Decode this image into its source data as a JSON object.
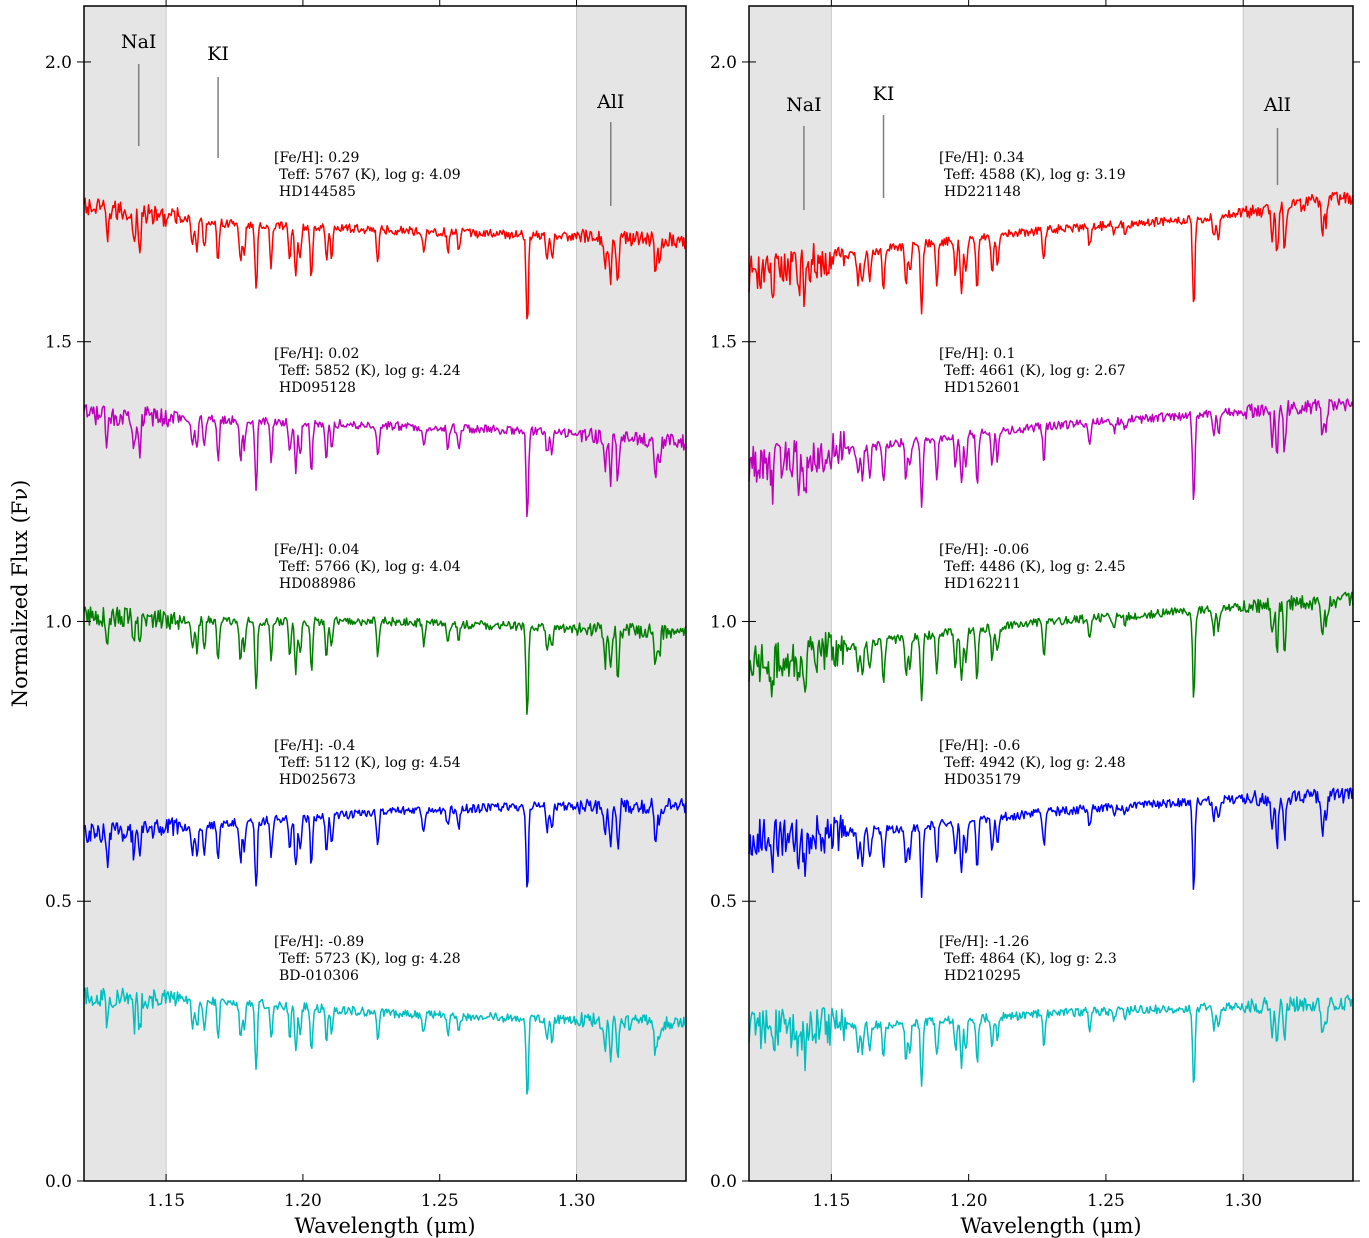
{
  "chart_data": [
    {
      "type": "line",
      "xlabel": "Wavelength (μm)",
      "ylabel": "Normalized Flux (Fν)",
      "xlim": [
        1.12,
        1.34
      ],
      "ylim": [
        0.0,
        2.1
      ],
      "x_ticks": [
        "1.15",
        "1.20",
        "1.25",
        "1.30"
      ],
      "y_ticks": [
        "0.0",
        "0.5",
        "1.0",
        "1.5",
        "2.0"
      ],
      "shaded_regions": [
        [
          1.12,
          1.15
        ],
        [
          1.3,
          1.34
        ]
      ],
      "line_markers": [
        {
          "label": "NaI",
          "x": 1.14,
          "y_top": 1.85,
          "y_bottom": 1.84
        },
        {
          "label": "KI",
          "x": 1.169,
          "y_top": 1.82,
          "y_bottom": 1.82
        },
        {
          "label": "AlI",
          "x": 1.3125,
          "y_top": 1.73,
          "y_bottom": 1.73
        }
      ],
      "series": [
        {
          "color": "#ff0000",
          "continuum": [
            1.74,
            1.71,
            1.7,
            1.69,
            1.68
          ],
          "feh": "[Fe/H]: 0.29",
          "params": "Teff: 5767 (K), log g: 4.09",
          "star": "HD144585"
        },
        {
          "color": "#bf00bf",
          "continuum": [
            1.37,
            1.36,
            1.35,
            1.34,
            1.32
          ],
          "feh": "[Fe/H]: 0.02",
          "params": "Teff: 5852 (K), log g: 4.24",
          "star": "HD095128"
        },
        {
          "color": "#007f00",
          "continuum": [
            1.01,
            1.0,
            1.0,
            0.99,
            0.98
          ],
          "feh": "[Fe/H]: 0.04",
          "params": "Teff: 5766 (K), log g: 4.04",
          "star": "HD088986"
        },
        {
          "color": "#0000ff",
          "continuum": [
            0.62,
            0.64,
            0.66,
            0.67,
            0.67
          ],
          "feh": "[Fe/H]: -0.4",
          "params": "Teff: 5112 (K), log g: 4.54",
          "star": "HD025673"
        },
        {
          "color": "#00bfbf",
          "continuum": [
            0.33,
            0.32,
            0.3,
            0.29,
            0.28
          ],
          "feh": "[Fe/H]: -0.89",
          "params": "Teff: 5723 (K), log g: 4.28",
          "star": "BD-010306"
        }
      ]
    },
    {
      "type": "line",
      "xlabel": "Wavelength (μm)",
      "xlim": [
        1.12,
        1.34
      ],
      "ylim": [
        0.0,
        2.1
      ],
      "x_ticks": [
        "1.15",
        "1.20",
        "1.25",
        "1.30"
      ],
      "y_ticks": [
        "0.0",
        "0.5",
        "1.0",
        "1.5",
        "2.0"
      ],
      "shaded_regions": [
        [
          1.12,
          1.15
        ],
        [
          1.3,
          1.34
        ]
      ],
      "line_markers": [
        {
          "label": "NaI",
          "x": 1.14,
          "y_top": 1.87,
          "y_bottom": 1.72
        },
        {
          "label": "KI",
          "x": 1.169,
          "y_top": 1.81,
          "y_bottom": 1.75
        },
        {
          "label": "AlI",
          "x": 1.3125,
          "y_top": 1.87,
          "y_bottom": 1.78
        }
      ],
      "series": [
        {
          "color": "#ff0000",
          "continuum": [
            1.62,
            1.67,
            1.7,
            1.72,
            1.76
          ],
          "feh": "[Fe/H]: 0.34",
          "params": "Teff: 4588 (K), log g: 3.19",
          "star": "HD221148"
        },
        {
          "color": "#bf00bf",
          "continuum": [
            1.28,
            1.32,
            1.35,
            1.37,
            1.39
          ],
          "feh": "[Fe/H]: 0.1",
          "params": "Teff: 4661 (K), log g: 2.67",
          "star": "HD152601"
        },
        {
          "color": "#007f00",
          "continuum": [
            0.92,
            0.97,
            1.0,
            1.02,
            1.04
          ],
          "feh": "[Fe/H]: -0.06",
          "params": "Teff: 4486 (K), log g: 2.45",
          "star": "HD162211"
        },
        {
          "color": "#0000ff",
          "continuum": [
            0.61,
            0.63,
            0.66,
            0.68,
            0.69
          ],
          "feh": "[Fe/H]: -0.6",
          "params": "Teff: 4942 (K), log g: 2.48",
          "star": "HD035179"
        },
        {
          "color": "#00bfbf",
          "continuum": [
            0.27,
            0.28,
            0.3,
            0.31,
            0.32
          ],
          "feh": "[Fe/H]: -1.26",
          "params": "Teff: 4864 (K), log g: 2.3",
          "star": "HD210295"
        }
      ]
    }
  ]
}
